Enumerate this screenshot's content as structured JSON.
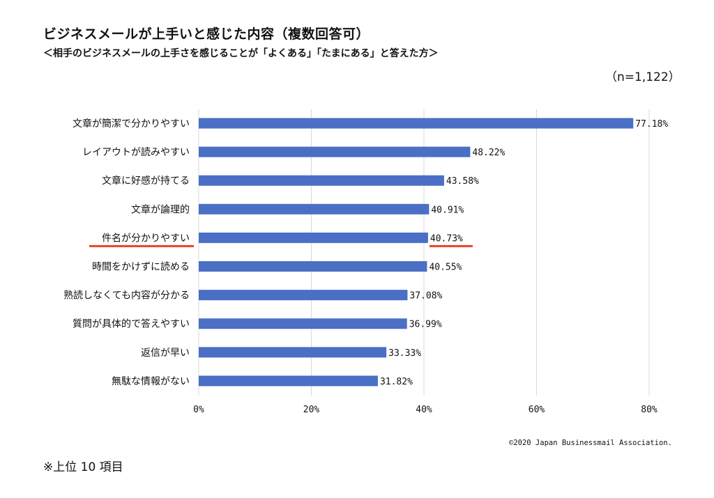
{
  "header": {
    "title": "ビジネスメールが上手いと感じた内容（複数回答可）",
    "subtitle": "＜相手のビジネスメールの上手さを感じることが「よくある」「たまにある」と答えた方＞",
    "sample_size": "（n=1,122）"
  },
  "footer": {
    "copyright": "©2020 Japan Businessmail Association.",
    "note": "※上位 10 項目"
  },
  "colors": {
    "bar": "#4a6fc5",
    "grid": "#d9d9d9",
    "highlight": "#e8402a"
  },
  "chart_data": {
    "type": "bar",
    "orientation": "horizontal",
    "categories": [
      "文章が簡潔で分かりやすい",
      "レイアウトが読みやすい",
      "文章に好感が持てる",
      "文章が論理的",
      "件名が分かりやすい",
      "時間をかけずに読める",
      "熟読しなくても内容が分かる",
      "質問が具体的で答えやすい",
      "返信が早い",
      "無駄な情報がない"
    ],
    "values": [
      77.18,
      48.22,
      43.58,
      40.91,
      40.73,
      40.55,
      37.08,
      36.99,
      33.33,
      31.82
    ],
    "value_labels": [
      "77.18%",
      "48.22%",
      "43.58%",
      "40.91%",
      "40.73%",
      "40.55%",
      "37.08%",
      "36.99%",
      "33.33%",
      "31.82%"
    ],
    "highlighted_index": 4,
    "xlim": [
      0,
      80
    ],
    "xticks": [
      0,
      20,
      40,
      60,
      80
    ],
    "xtick_labels": [
      "0%",
      "20%",
      "40%",
      "60%",
      "80%"
    ],
    "grid": true
  }
}
